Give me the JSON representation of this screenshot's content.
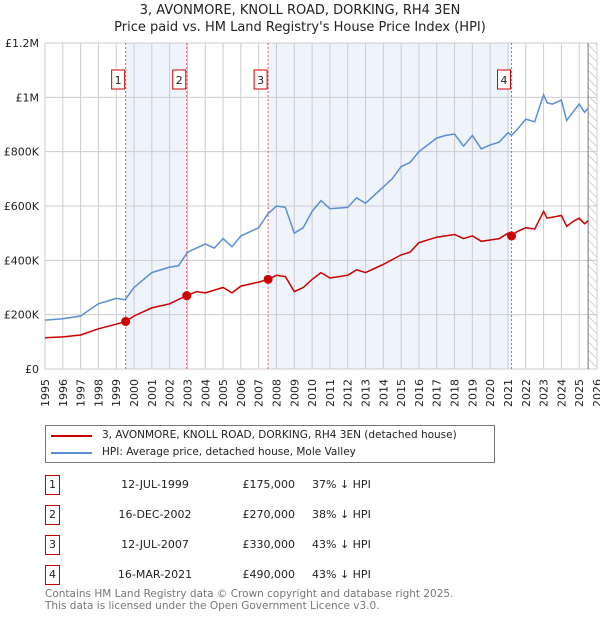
{
  "chart_data": {
    "type": "line",
    "title": "3, AVONMORE, KNOLL ROAD, DORKING, RH4 3EN",
    "subtitle": "Price paid vs. HM Land Registry's House Price Index (HPI)",
    "xlim": [
      1995,
      2026
    ],
    "ylim": [
      0,
      1200000
    ],
    "y_ticks": [
      {
        "v": 0,
        "label": "£0"
      },
      {
        "v": 200000,
        "label": "£200K"
      },
      {
        "v": 400000,
        "label": "£400K"
      },
      {
        "v": 600000,
        "label": "£600K"
      },
      {
        "v": 800000,
        "label": "£800K"
      },
      {
        "v": 1000000,
        "label": "£1M"
      },
      {
        "v": 1200000,
        "label": "£1.2M"
      }
    ],
    "x_ticks": [
      "1995",
      "1996",
      "1997",
      "1998",
      "1999",
      "2000",
      "2001",
      "2002",
      "2003",
      "2004",
      "2005",
      "2006",
      "2007",
      "2008",
      "2009",
      "2010",
      "2011",
      "2012",
      "2013",
      "2014",
      "2015",
      "2016",
      "2017",
      "2018",
      "2019",
      "2020",
      "2021",
      "2022",
      "2023",
      "2024",
      "2025",
      "2026"
    ],
    "shaded_ranges": [
      [
        1999.53,
        2002.96
      ],
      [
        2007.53,
        2021.2
      ]
    ],
    "forecast_start": 2025.5,
    "series": [
      {
        "name": "3, AVONMORE, KNOLL ROAD, DORKING, RH4 3EN (detached house)",
        "color": "#cc0000",
        "x": [
          1995,
          1996,
          1997,
          1998,
          1999,
          1999.53,
          2000,
          2001,
          2002,
          2002.96,
          2003.5,
          2004,
          2005,
          2005.5,
          2006,
          2007,
          2007.53,
          2008,
          2008.5,
          2009,
          2009.5,
          2010,
          2010.5,
          2011,
          2012,
          2012.5,
          2013,
          2014,
          2015,
          2015.5,
          2016,
          2017,
          2018,
          2018.5,
          2019,
          2019.5,
          2020,
          2020.5,
          2021,
          2021.2,
          2021.5,
          2022,
          2022.5,
          2023,
          2023.2,
          2024,
          2024.3,
          2024.7,
          2025,
          2025.3,
          2025.5
        ],
        "y": [
          115000,
          118000,
          125000,
          148000,
          165000,
          175000,
          195000,
          225000,
          240000,
          270000,
          285000,
          280000,
          300000,
          280000,
          305000,
          320000,
          330000,
          345000,
          340000,
          285000,
          300000,
          330000,
          355000,
          335000,
          345000,
          365000,
          355000,
          385000,
          420000,
          430000,
          465000,
          485000,
          495000,
          480000,
          490000,
          470000,
          475000,
          480000,
          500000,
          490000,
          505000,
          520000,
          515000,
          580000,
          555000,
          565000,
          525000,
          545000,
          555000,
          535000,
          545000
        ]
      },
      {
        "name": "HPI: Average price, detached house, Mole Valley",
        "color": "#5b8fd4",
        "x": [
          1995,
          1996,
          1997,
          1998,
          1999,
          1999.5,
          2000,
          2001,
          2002,
          2002.5,
          2003,
          2004,
          2004.5,
          2005,
          2005.5,
          2006,
          2007,
          2007.5,
          2008,
          2008.5,
          2009,
          2009.5,
          2010,
          2010.5,
          2011,
          2012,
          2012.5,
          2013,
          2014,
          2014.5,
          2015,
          2015.5,
          2016,
          2016.5,
          2017,
          2017.5,
          2018,
          2018.5,
          2019,
          2019.5,
          2020,
          2020.5,
          2021,
          2021.2,
          2021.5,
          2022,
          2022.5,
          2023,
          2023.2,
          2023.5,
          2024,
          2024.3,
          2024.7,
          2025,
          2025.3,
          2025.5
        ],
        "y": [
          180000,
          185000,
          195000,
          240000,
          260000,
          255000,
          300000,
          355000,
          375000,
          380000,
          430000,
          460000,
          445000,
          480000,
          450000,
          490000,
          520000,
          570000,
          600000,
          595000,
          500000,
          520000,
          580000,
          620000,
          590000,
          595000,
          630000,
          610000,
          670000,
          700000,
          745000,
          760000,
          800000,
          825000,
          850000,
          860000,
          865000,
          820000,
          860000,
          810000,
          825000,
          835000,
          870000,
          860000,
          880000,
          920000,
          910000,
          1010000,
          980000,
          975000,
          990000,
          915000,
          950000,
          975000,
          945000,
          960000
        ]
      }
    ],
    "sales": [
      {
        "n": "1",
        "x": 1999.53,
        "y": 175000,
        "date": "12-JUL-1999",
        "price": "£175,000",
        "hpi": "37% ↓ HPI"
      },
      {
        "n": "2",
        "x": 2002.96,
        "y": 270000,
        "date": "16-DEC-2002",
        "price": "£270,000",
        "hpi": "38% ↓ HPI"
      },
      {
        "n": "3",
        "x": 2007.53,
        "y": 330000,
        "date": "12-JUL-2007",
        "price": "£330,000",
        "hpi": "43% ↓ HPI"
      },
      {
        "n": "4",
        "x": 2021.2,
        "y": 490000,
        "date": "16-MAR-2021",
        "price": "£490,000",
        "hpi": "43% ↓ HPI"
      }
    ]
  },
  "footer": {
    "line1": "Contains HM Land Registry data © Crown copyright and database right 2025.",
    "line2": "This data is licensed under the Open Government Licence v3.0."
  }
}
